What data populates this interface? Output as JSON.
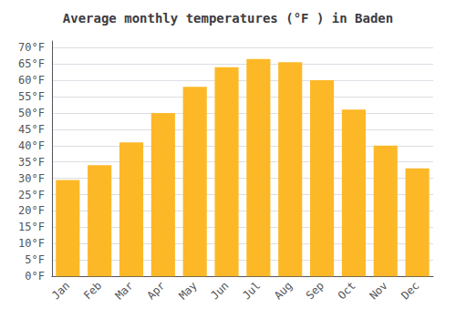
{
  "chart_data": {
    "type": "bar",
    "title": "Average monthly temperatures (°F ) in Baden",
    "categories": [
      "Jan",
      "Feb",
      "Mar",
      "Apr",
      "May",
      "Jun",
      "Jul",
      "Aug",
      "Sep",
      "Oct",
      "Nov",
      "Dec"
    ],
    "values": [
      29.5,
      34.0,
      41.0,
      50.0,
      58.0,
      64.0,
      66.5,
      65.5,
      60.0,
      51.0,
      40.0,
      33.0
    ],
    "color": "#FDB827",
    "ylim": [
      0,
      72
    ],
    "yticks": [
      {
        "value": 0,
        "label": "0°F"
      },
      {
        "value": 5,
        "label": "5°F"
      },
      {
        "value": 10,
        "label": "10°F"
      },
      {
        "value": 15,
        "label": "15°F"
      },
      {
        "value": 20,
        "label": "20°F"
      },
      {
        "value": 25,
        "label": "25°F"
      },
      {
        "value": 30,
        "label": "30°F"
      },
      {
        "value": 35,
        "label": "35°F"
      },
      {
        "value": 40,
        "label": "40°F"
      },
      {
        "value": 45,
        "label": "45°F"
      },
      {
        "value": 50,
        "label": "50°F"
      },
      {
        "value": 55,
        "label": "55°F"
      },
      {
        "value": 60,
        "label": "60°F"
      },
      {
        "value": 65,
        "label": "65°F"
      },
      {
        "value": 70,
        "label": "70°F"
      }
    ],
    "grid": true
  }
}
